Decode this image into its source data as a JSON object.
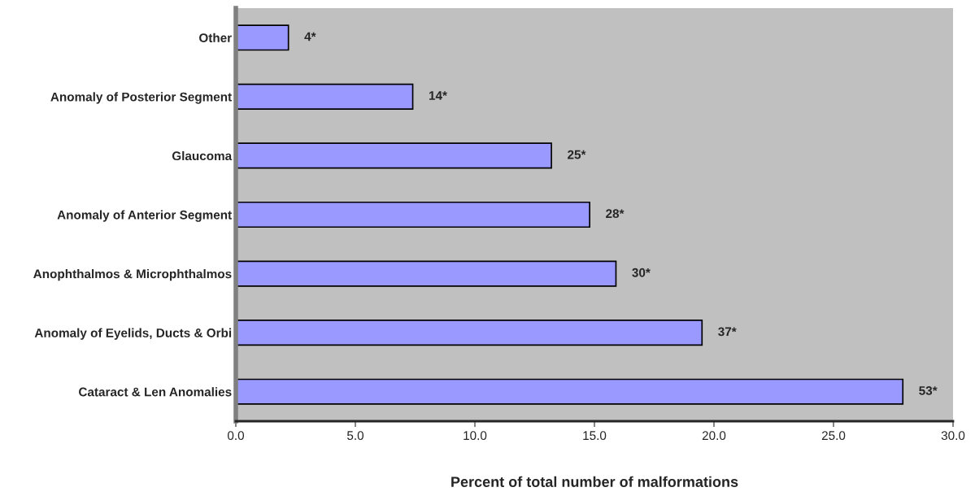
{
  "chart_data": {
    "type": "bar",
    "orientation": "horizontal",
    "xlabel": "Percent of total number of malformations",
    "categories": [
      "Other",
      "Anomaly of Posterior Segment",
      "Glaucoma",
      "Anomaly of Anterior Segment",
      "Anophthalmos & Microphthalmos",
      "Anomaly of Eyelids, Ducts & Orbi",
      "Cataract & Len Anomalies"
    ],
    "values": [
      2.2,
      7.4,
      13.2,
      14.8,
      15.9,
      19.5,
      27.9
    ],
    "annotations": [
      {
        "text": "4*",
        "x": 2.2,
        "y": "Other"
      },
      {
        "text": "14*",
        "x": 7.4,
        "y": "Anomaly of Posterior Segment"
      },
      {
        "text": "25*",
        "x": 13.2,
        "y": "Glaucoma"
      },
      {
        "text": "28*",
        "x": 14.8,
        "y": "Anomaly of Anterior Segment"
      },
      {
        "text": "30*",
        "x": 15.9,
        "y": "Anophthalmos & Microphthalmos"
      },
      {
        "text": "37*",
        "x": 19.5,
        "y": "Anomaly of Eyelids, Ducts & Orbi"
      },
      {
        "text": "53*",
        "x": 27.9,
        "y": "Cataract & Len Anomalies"
      }
    ],
    "color": "#9999ff",
    "xlim": [
      0,
      30
    ],
    "xticks": [
      {
        "value": 0,
        "label": "0.0"
      },
      {
        "value": 5,
        "label": "5.0"
      },
      {
        "value": 10,
        "label": "10.0"
      },
      {
        "value": 15,
        "label": "15.0"
      },
      {
        "value": 20,
        "label": "20.0"
      },
      {
        "value": 25,
        "label": "25.0"
      },
      {
        "value": 30,
        "label": "30.0"
      }
    ],
    "grid": false,
    "legend": false
  }
}
